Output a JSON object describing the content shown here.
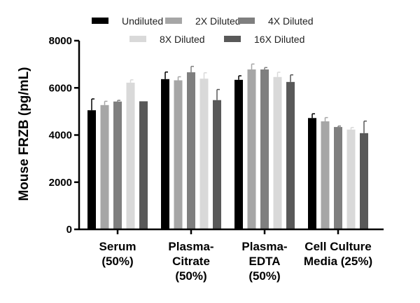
{
  "chart_data": {
    "type": "bar",
    "title": "",
    "xlabel": "",
    "ylabel": "Mouse FRZB (pg/mL)",
    "ylim": [
      0,
      8000
    ],
    "yticks": [
      "0",
      "2000",
      "4000",
      "6000",
      "8000"
    ],
    "categories": [
      [
        "Serum",
        "(50%)"
      ],
      [
        "Plasma-",
        "Citrate",
        "(50%)"
      ],
      [
        "Plasma-",
        "EDTA",
        "(50%)"
      ],
      [
        "Cell Culture",
        "Media (25%)"
      ]
    ],
    "series": [
      {
        "name": "Undiluted",
        "color": "#000000",
        "values": [
          5050,
          6370,
          6340,
          4720
        ],
        "errors": [
          480,
          300,
          170,
          180
        ]
      },
      {
        "name": "2X Diluted",
        "color": "#a6a6a6",
        "values": [
          5270,
          6320,
          6780,
          4580
        ],
        "errors": [
          160,
          150,
          230,
          160
        ]
      },
      {
        "name": "4X Diluted",
        "color": "#7f7f7f",
        "values": [
          5420,
          6660,
          6780,
          4340
        ],
        "errors": [
          50,
          250,
          80,
          40
        ]
      },
      {
        "name": "8X Diluted",
        "color": "#d9d9d9",
        "values": [
          6220,
          6390,
          6460,
          4230
        ],
        "errors": [
          120,
          250,
          200,
          90
        ]
      },
      {
        "name": "16X Diluted",
        "color": "#595959",
        "values": [
          5430,
          5480,
          6250,
          4080
        ],
        "errors": [
          0,
          450,
          300,
          510
        ]
      }
    ],
    "legend": "top"
  }
}
